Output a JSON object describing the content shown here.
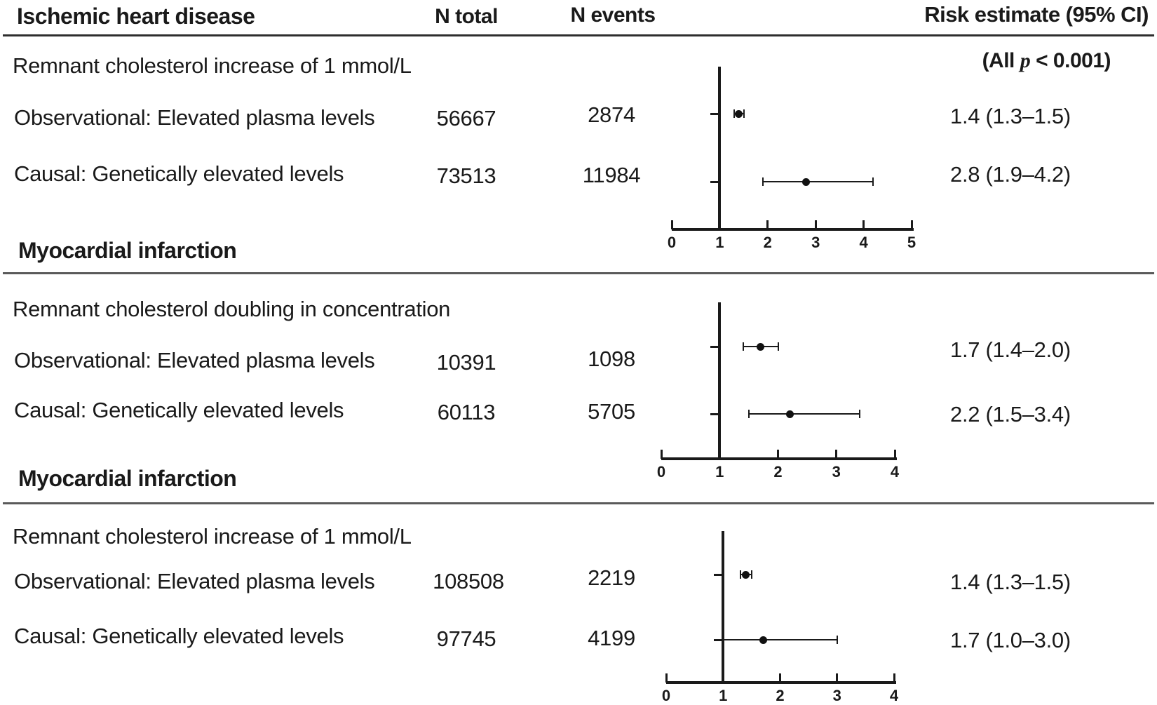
{
  "header": {
    "title": "Ischemic heart disease",
    "col_n_total": "N total",
    "col_n_events": "N events",
    "col_risk": "Risk estimate (95% CI)"
  },
  "p_note": {
    "open": "(All ",
    "p_symbol": "p",
    "close": " < 0.001)"
  },
  "colors": {
    "text": "#1a1a1a",
    "marker": "#111111",
    "rule": "#2e2e2e",
    "divider": "#5a5a5a"
  },
  "chart_data": [
    {
      "type": "forest",
      "group": "Ischemic heart disease",
      "subtitle": "Remnant cholesterol increase of 1 mmol/L",
      "xlim": [
        0,
        5
      ],
      "xlabel_ticks": [
        0,
        1,
        2,
        3,
        4,
        5
      ],
      "ref_line": 1,
      "grid": false,
      "rows": [
        {
          "label": "Observational: Elevated plasma levels",
          "n_total": "56667",
          "n_events": "2874",
          "estimate": 1.4,
          "ci_low": 1.3,
          "ci_high": 1.5,
          "risk_label": "1.4 (1.3–1.5)"
        },
        {
          "label": "Causal: Genetically elevated levels",
          "n_total": "73513",
          "n_events": "11984",
          "estimate": 2.8,
          "ci_low": 1.9,
          "ci_high": 4.2,
          "risk_label": "2.8 (1.9–4.2)"
        }
      ]
    },
    {
      "type": "forest",
      "group": "Myocardial infarction",
      "subtitle": "Remnant cholesterol doubling in concentration",
      "xlim": [
        0,
        4
      ],
      "xlabel_ticks": [
        0,
        1,
        2,
        3,
        4
      ],
      "ref_line": 1,
      "grid": false,
      "rows": [
        {
          "label": "Observational: Elevated plasma levels",
          "n_total": "10391",
          "n_events": "1098",
          "estimate": 1.7,
          "ci_low": 1.4,
          "ci_high": 2.0,
          "risk_label": "1.7 (1.4–2.0)"
        },
        {
          "label": "Causal: Genetically elevated levels",
          "n_total": "60113",
          "n_events": "5705",
          "estimate": 2.2,
          "ci_low": 1.5,
          "ci_high": 3.4,
          "risk_label": "2.2 (1.5–3.4)"
        }
      ]
    },
    {
      "type": "forest",
      "group": "Myocardial infarction",
      "subtitle": "Remnant cholesterol increase of 1 mmol/L",
      "xlim": [
        0,
        4
      ],
      "xlabel_ticks": [
        0,
        1,
        2,
        3,
        4
      ],
      "ref_line": 1,
      "grid": false,
      "rows": [
        {
          "label": "Observational: Elevated plasma levels",
          "n_total": "108508",
          "n_events": "2219",
          "estimate": 1.4,
          "ci_low": 1.3,
          "ci_high": 1.5,
          "risk_label": "1.4 (1.3–1.5)"
        },
        {
          "label": "Causal: Genetically elevated levels",
          "n_total": "97745",
          "n_events": "4199",
          "estimate": 1.7,
          "ci_low": 1.0,
          "ci_high": 3.0,
          "risk_label": "1.7 (1.0–3.0)"
        }
      ]
    }
  ]
}
